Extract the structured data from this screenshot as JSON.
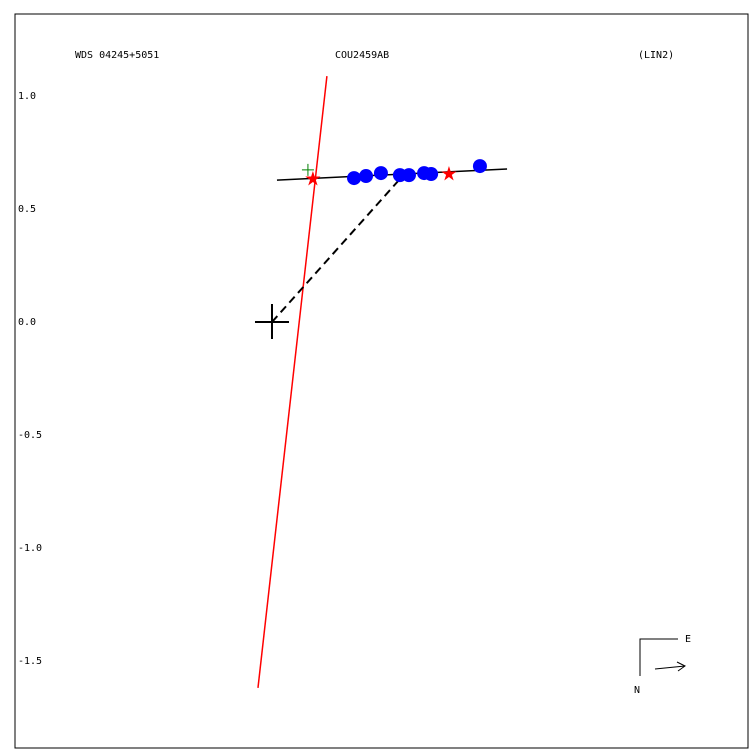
{
  "chart_data": {
    "type": "scatter",
    "title": "WDS 04245+5051",
    "subtitle": "COU2459AB",
    "annotation": "(LIN2)",
    "xlim": [
      -1.137,
      2.106
    ],
    "ylim": [
      -1.885,
      1.363
    ],
    "yticks": [
      {
        "value": 1,
        "label": "1.0"
      },
      0.5,
      {
        "value": 0,
        "label": "0.0"
      },
      -0.5,
      {
        "value": -1,
        "label": "-1.0"
      },
      -1.5
    ],
    "primary": {
      "x": 0,
      "y": 0
    },
    "observations": {
      "color": "#0000ff",
      "x": [
        0.363,
        0.416,
        0.482,
        0.566,
        0.606,
        0.673,
        0.704,
        0.92
      ],
      "y": [
        0.637,
        0.646,
        0.659,
        0.65,
        0.65,
        0.659,
        0.655,
        0.69
      ]
    },
    "stars": {
      "color": "#ff0000",
      "x": [
        0.181,
        0.783
      ],
      "y": [
        0.633,
        0.655
      ]
    },
    "plus": {
      "color": "#008000",
      "x": [
        0.159
      ],
      "y": [
        0.673
      ]
    },
    "lines": [
      {
        "color": "#000000",
        "dashed": false,
        "x": [
          0.022,
          1.04
        ],
        "y": [
          0.628,
          0.677
        ]
      },
      {
        "color": "#ff0000",
        "dashed": false,
        "x": [
          0.243,
          -0.062
        ],
        "y": [
          1.088,
          -1.619
        ]
      },
      {
        "color": "#000000",
        "dashed": true,
        "x": [
          0,
          0.558
        ],
        "y": [
          0,
          0.624
        ]
      }
    ],
    "compass": {
      "east": "E",
      "north": "N"
    }
  }
}
